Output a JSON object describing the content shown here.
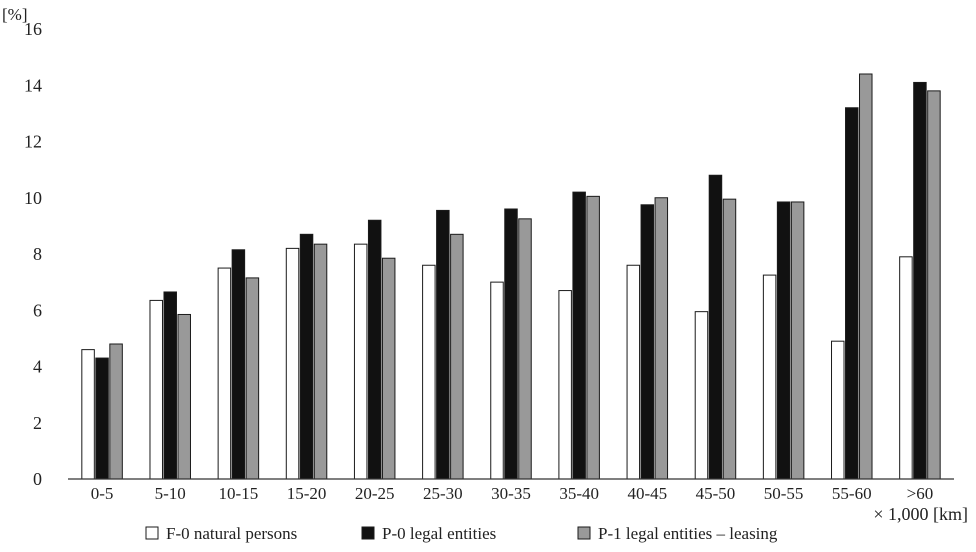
{
  "chart_data": {
    "type": "bar",
    "ylabel": "[%]",
    "xlabel": "× 1,000 [km]",
    "ylim": [
      0,
      16
    ],
    "yticks": [
      0,
      2,
      4,
      6,
      8,
      10,
      12,
      14,
      16
    ],
    "grid": false,
    "legend_position": "bottom",
    "categories": [
      "0-5",
      "5-10",
      "10-15",
      "15-20",
      "20-25",
      "25-30",
      "30-35",
      "35-40",
      "40-45",
      "45-50",
      "50-55",
      "55-60",
      ">60"
    ],
    "series": [
      {
        "name": "F-0   natural persons",
        "color": "#ffffff",
        "values": [
          4.6,
          6.35,
          7.5,
          8.2,
          8.35,
          7.6,
          7.0,
          6.7,
          7.6,
          5.95,
          7.25,
          4.9,
          7.9
        ]
      },
      {
        "name": "P-0   legal entities",
        "color": "#111111",
        "values": [
          4.3,
          6.65,
          8.15,
          8.7,
          9.2,
          9.55,
          9.6,
          10.2,
          9.75,
          10.8,
          9.85,
          13.2,
          14.1
        ]
      },
      {
        "name": "P-1   legal entities – leasing",
        "color": "#999999",
        "values": [
          4.8,
          5.85,
          7.15,
          8.35,
          7.85,
          8.7,
          9.25,
          10.05,
          10.0,
          9.95,
          9.85,
          14.4,
          13.8
        ]
      }
    ]
  }
}
